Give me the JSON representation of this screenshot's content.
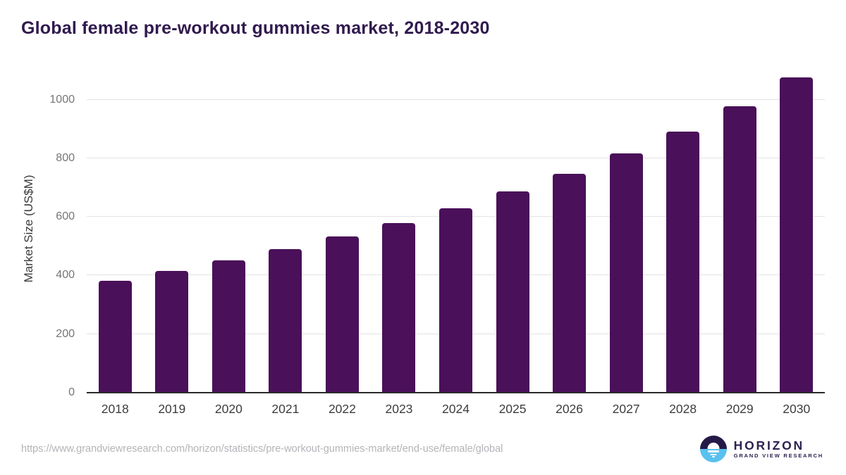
{
  "title": "Global female pre-workout gummies market, 2018-2030",
  "chart_data": {
    "type": "bar",
    "categories": [
      "2018",
      "2019",
      "2020",
      "2021",
      "2022",
      "2023",
      "2024",
      "2025",
      "2026",
      "2027",
      "2028",
      "2029",
      "2030"
    ],
    "values": [
      383,
      416,
      451,
      491,
      533,
      578,
      630,
      686,
      748,
      816,
      892,
      978,
      1075
    ],
    "title": "Global female pre-workout gummies market, 2018-2030",
    "xlabel": "",
    "ylabel": "Market Size (US$M)",
    "ylim": [
      0,
      1100
    ],
    "yticks": [
      0,
      200,
      400,
      600,
      800,
      1000
    ],
    "grid": true,
    "legend": "none",
    "bar_color": "#4a1059"
  },
  "footer": {
    "source_url": "https://www.grandviewresearch.com/horizon/statistics/pre-workout-gummies-market/end-use/female/global",
    "logo": {
      "name": "HORIZON",
      "subtitle": "GRAND VIEW RESEARCH",
      "icon": "horizon-sunrise-circle-icon"
    }
  },
  "colors": {
    "bar": "#4a1059",
    "title": "#301a4e",
    "axis": "#2b2b2b",
    "grid": "#e3e3e3",
    "tick": "#76767a",
    "xlabel": "#3d3d3d",
    "url": "#b4b4b9",
    "logo_dark": "#251a47",
    "logo_blue": "#5ac1ee",
    "logo_text": "#2d2150"
  }
}
